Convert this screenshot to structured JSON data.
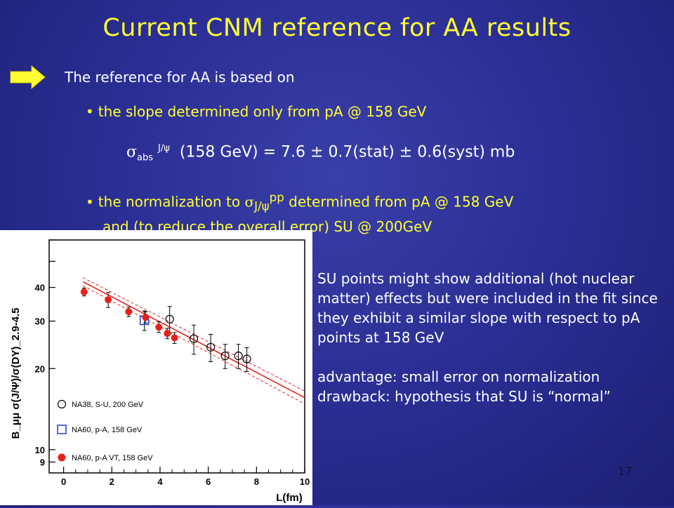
{
  "slide": {
    "title": "Current CNM reference for AA results",
    "intro": "The reference for AA is based on",
    "bullet1": "the slope determined only from pA @ 158 GeV",
    "formula": {
      "sigma": "σ",
      "sub": "abs",
      "sup": "J/ψ",
      "text": "(158 GeV) = 7.6 ± 0.7(stat) ± 0.6(syst) mb"
    },
    "bullet2": {
      "line1_pre": "the normalization to",
      "sigma": "σ",
      "sub": "J/ψ",
      "sup": "pp",
      "line1_post": "determined from pA @ 158 GeV",
      "line2": "and (to reduce the overall error) SU @ 200GeV"
    },
    "side_text": [
      "SU points might show additional (hot nuclear matter) effects but were included in the fit since they exhibit a similar slope with respect to pA points at 158 GeV",
      "advantage: small error on normalization",
      "drawback: hypothesis that SU is “normal”"
    ],
    "page_number": "17",
    "colors": {
      "title": "#ffff33",
      "background": "#2b2f95",
      "fit_line": "#e8201a"
    },
    "icons": {
      "arrow": "right-arrow-icon"
    }
  },
  "chart_data": {
    "type": "scatter",
    "xlabel": "L(fm)",
    "ylabel": "B_μμ σ(J/Ψ)/σ(DY)_2.9-4.5",
    "xlim": [
      -0.6,
      10
    ],
    "ylim": [
      8.2,
      60
    ],
    "yscale": "log",
    "xticks": [
      0,
      2,
      4,
      6,
      8,
      10
    ],
    "yticks": [
      9,
      10,
      20,
      30,
      40
    ],
    "series": [
      {
        "name": "NA38, S-U, 200 GeV",
        "marker": "open-circle",
        "color": "#000000",
        "points": [
          {
            "x": 4.4,
            "y": 30.5,
            "err": 3.5
          },
          {
            "x": 5.4,
            "y": 25.8,
            "err": 3.2
          },
          {
            "x": 6.1,
            "y": 24.0,
            "err": 2.8
          },
          {
            "x": 6.7,
            "y": 22.3,
            "err": 2.3
          },
          {
            "x": 7.25,
            "y": 22.3,
            "err": 2.3
          },
          {
            "x": 7.6,
            "y": 21.7,
            "err": 2.2
          }
        ]
      },
      {
        "name": "NA60, p-A, 158 GeV",
        "marker": "open-square",
        "color": "#1f3fd6",
        "points": [
          {
            "x": 3.35,
            "y": 30.2,
            "err": 2.5
          }
        ]
      },
      {
        "name": "NA60, p-A VT, 158 GeV",
        "marker": "filled-circle",
        "color": "#e8201a",
        "points": [
          {
            "x": 0.85,
            "y": 38.5,
            "err": 1.3
          },
          {
            "x": 1.85,
            "y": 36.0,
            "err": 2.3
          },
          {
            "x": 2.7,
            "y": 32.5,
            "err": 1.3
          },
          {
            "x": 3.4,
            "y": 31.0,
            "err": 1.5
          },
          {
            "x": 3.95,
            "y": 28.5,
            "err": 1.3
          },
          {
            "x": 4.3,
            "y": 27.0,
            "err": 1.2
          },
          {
            "x": 4.6,
            "y": 26.0,
            "err": 1.2
          }
        ]
      }
    ],
    "fit": {
      "line": [
        [
          0.8,
          42.0
        ],
        [
          10,
          15.6
        ]
      ],
      "band_upper": [
        [
          0.8,
          43.5
        ],
        [
          10,
          16.5
        ]
      ],
      "band_lower": [
        [
          0.8,
          40.6
        ],
        [
          10,
          14.8
        ]
      ]
    },
    "legend_position": "bottom-left"
  }
}
